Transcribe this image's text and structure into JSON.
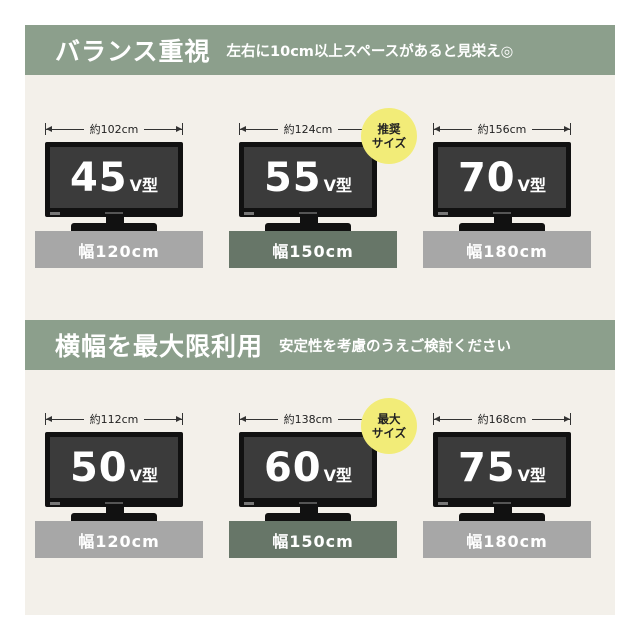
{
  "colors": {
    "card_bg": "#f3f0ea",
    "banner_bg": "#8c9f8c",
    "base_light": "#a7a7a7",
    "base_dark": "#677668",
    "badge": "#f2ec78",
    "tv_frame": "#111111",
    "tv_screen": "#3b3b3b"
  },
  "sections": [
    {
      "title": "バランス重視",
      "subtitle": "左右に10cm以上スペースがあると見栄え◎",
      "items": [
        {
          "width": "約102cm",
          "size": "45",
          "unit": "V型",
          "base": "幅120cm",
          "base_style": "light",
          "badge": null
        },
        {
          "width": "約124cm",
          "size": "55",
          "unit": "V型",
          "base": "幅150cm",
          "base_style": "dark",
          "badge": {
            "line1": "推奨",
            "line2": "サイズ"
          }
        },
        {
          "width": "約156cm",
          "size": "70",
          "unit": "V型",
          "base": "幅180cm",
          "base_style": "light",
          "badge": null
        }
      ]
    },
    {
      "title": "横幅を最大限利用",
      "subtitle": "安定性を考慮のうえご検討ください",
      "items": [
        {
          "width": "約112cm",
          "size": "50",
          "unit": "V型",
          "base": "幅120cm",
          "base_style": "light",
          "badge": null
        },
        {
          "width": "約138cm",
          "size": "60",
          "unit": "V型",
          "base": "幅150cm",
          "base_style": "dark",
          "badge": {
            "line1": "最大",
            "line2": "サイズ"
          }
        },
        {
          "width": "約168cm",
          "size": "75",
          "unit": "V型",
          "base": "幅180cm",
          "base_style": "light",
          "badge": null
        }
      ]
    }
  ]
}
